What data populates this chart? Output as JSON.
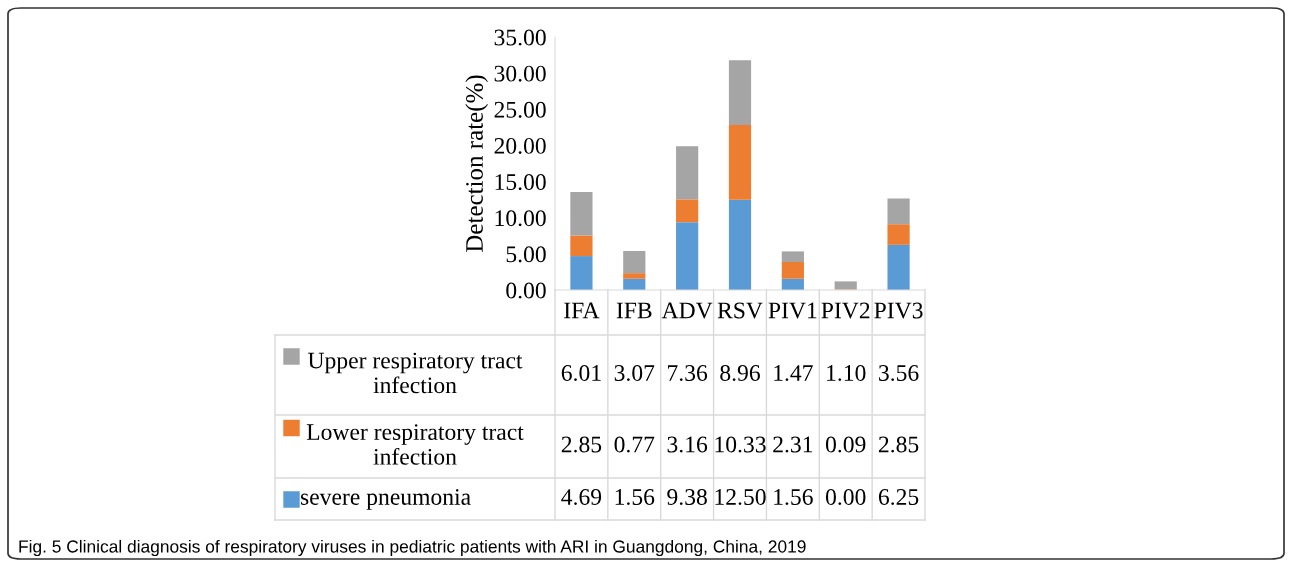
{
  "chart_data": {
    "type": "bar",
    "stacked": true,
    "ylabel": "Detection rate(%)",
    "categories": [
      "IFA",
      "IFB",
      "ADV",
      "RSV",
      "PIV1",
      "PIV2",
      "PIV3"
    ],
    "ylim": [
      0,
      35
    ],
    "yticks": [
      {
        "value": 0,
        "label": "0.00"
      },
      {
        "value": 5,
        "label": "5.00"
      },
      {
        "value": 10,
        "label": "10.00"
      },
      {
        "value": 15,
        "label": "15.00"
      },
      {
        "value": 20,
        "label": "20.00"
      },
      {
        "value": 25,
        "label": "25.00"
      },
      {
        "value": 30,
        "label": "30.00"
      },
      {
        "value": 35,
        "label": "35.00"
      }
    ],
    "grid": false,
    "legend": "bottom",
    "series": [
      {
        "name": "severe pneumonia",
        "color": "#5b9bd5",
        "values": [
          4.69,
          1.56,
          9.38,
          12.5,
          1.56,
          0.0,
          6.25
        ],
        "value_labels": [
          "4.69",
          "1.56",
          "9.38",
          "12.50",
          "1.56",
          "0.00",
          "6.25"
        ]
      },
      {
        "name": "Lower respiratory tract infection",
        "color": "#ed7d31",
        "values": [
          2.85,
          0.77,
          3.16,
          10.33,
          2.31,
          0.09,
          2.85
        ],
        "value_labels": [
          "2.85",
          "0.77",
          "3.16",
          "10.33",
          "2.31",
          "0.09",
          "2.85"
        ]
      },
      {
        "name": "Upper respiratory tract infection",
        "color": "#a5a5a5",
        "values": [
          6.01,
          3.07,
          7.36,
          8.96,
          1.47,
          1.1,
          3.56
        ],
        "value_labels": [
          "6.01",
          "3.07",
          "7.36",
          "8.96",
          "1.47",
          "1.10",
          "3.56"
        ]
      }
    ],
    "annotations": [
      "Fig. 5 Clinical diagnosis of respiratory viruses in pediatric patients with ARI in Guangdong, China, 2019"
    ]
  }
}
